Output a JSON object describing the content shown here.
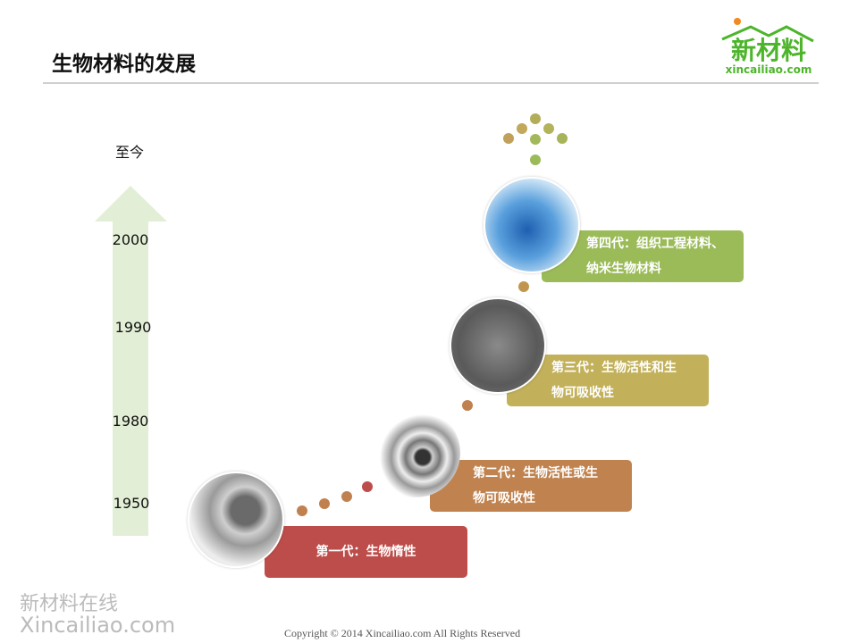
{
  "title": "生物材料的发展",
  "logo": {
    "text": "新材料",
    "sub": "xincailiao.com",
    "color": "#4cb52a"
  },
  "axis": {
    "labels": [
      "至今",
      "2000",
      "1990",
      "1980",
      "1950"
    ],
    "arrow_color": "#e2efd6"
  },
  "generations": [
    {
      "line1": "第一代：生物惰性",
      "line2": "",
      "color": "#bd4d4a"
    },
    {
      "line1": "第二代：生物活性或生",
      "line2": "物可吸收性",
      "color": "#c0834f"
    },
    {
      "line1": "第三代：生物活性和生",
      "line2": "物可吸收性",
      "color": "#c2b15a"
    },
    {
      "line1": "第四代：组织工程材料、",
      "line2": "纳米生物材料",
      "color": "#9bbb59"
    }
  ],
  "watermark": {
    "line1": "新材料在线",
    "line2": "Xincailiao.com"
  },
  "copyright": "Copyright © 2014   Xincailiao.com    All Rights Reserved"
}
